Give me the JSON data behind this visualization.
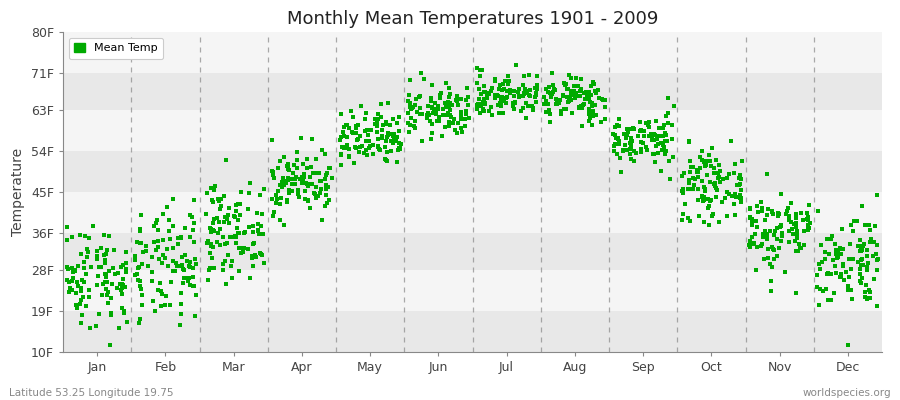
{
  "title": "Monthly Mean Temperatures 1901 - 2009",
  "ylabel": "Temperature",
  "xlabel_months": [
    "Jan",
    "Feb",
    "Mar",
    "Apr",
    "May",
    "Jun",
    "Jul",
    "Aug",
    "Sep",
    "Oct",
    "Nov",
    "Dec"
  ],
  "ytick_labels": [
    "10F",
    "19F",
    "28F",
    "36F",
    "45F",
    "54F",
    "63F",
    "71F",
    "80F"
  ],
  "ytick_values": [
    10,
    19,
    28,
    36,
    45,
    54,
    63,
    71,
    80
  ],
  "ylim": [
    10,
    80
  ],
  "dot_color": "#00aa00",
  "dot_size": 7,
  "background_color": "#ffffff",
  "plot_bg_color_light": "#f5f5f5",
  "plot_bg_color_dark": "#e8e8e8",
  "grid_color": "#888888",
  "legend_label": "Mean Temp",
  "subtitle_left": "Latitude 53.25 Longitude 19.75",
  "subtitle_right": "worldspecies.org",
  "mean_temps_C": {
    "Jan": -3.0,
    "Feb": -2.0,
    "Mar": 2.5,
    "Apr": 8.5,
    "May": 13.5,
    "Jun": 17.0,
    "Jul": 19.0,
    "Aug": 18.5,
    "Sep": 13.5,
    "Oct": 8.0,
    "Nov": 2.5,
    "Dec": -1.0
  },
  "std_temps_C": {
    "Jan": 3.2,
    "Feb": 3.5,
    "Mar": 2.8,
    "Apr": 2.0,
    "May": 1.8,
    "Jun": 1.6,
    "Jul": 1.4,
    "Aug": 1.4,
    "Sep": 1.6,
    "Oct": 2.0,
    "Nov": 2.5,
    "Dec": 3.0
  },
  "n_years": 109,
  "seed": 42
}
